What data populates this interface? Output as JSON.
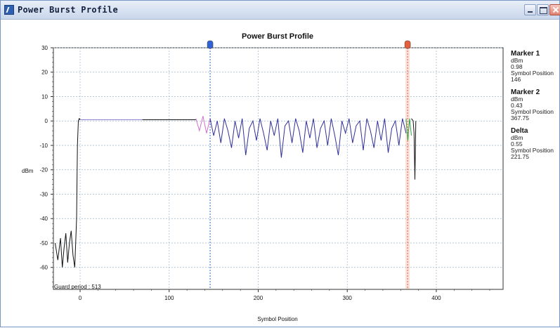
{
  "window": {
    "title": "Power Burst Profile"
  },
  "chart_data": {
    "type": "line",
    "title": "Power Burst Profile",
    "xlabel": "Symbol Position",
    "ylabel": "dBm",
    "xlim": [
      -30,
      475
    ],
    "ylim": [
      -69,
      30
    ],
    "x_ticks": [
      "0",
      "100",
      "200",
      "300",
      "400"
    ],
    "x_tick_values": [
      0,
      100,
      200,
      300,
      400
    ],
    "y_ticks": [
      "30",
      "20",
      "10",
      "0",
      "-10",
      "-20",
      "-30",
      "-40",
      "-50",
      "-60"
    ],
    "y_tick_values": [
      30,
      20,
      10,
      0,
      -10,
      -20,
      -30,
      -40,
      -50,
      -60
    ],
    "grid": true,
    "annotation": "Guard period : 513",
    "markers": [
      {
        "label": "1",
        "x": 146,
        "color": "#2f63d6"
      },
      {
        "label": "2",
        "x": 367.75,
        "color": "#e4603a"
      }
    ],
    "series": [
      {
        "color": "#111111",
        "segment": "ramp",
        "x": [
          -28,
          -25,
          -22,
          -20,
          -18,
          -16,
          -14,
          -12,
          -10,
          -8,
          -6,
          -4,
          -3,
          -2,
          -1,
          0,
          70
        ],
        "y": [
          -50,
          -57,
          -48,
          -60,
          -52,
          -46,
          -58,
          -50,
          -45,
          -55,
          -60,
          -40,
          -10,
          0,
          1,
          0.5,
          0.5
        ]
      },
      {
        "color": "#8a7fd0",
        "segment": "guard",
        "x": [
          0,
          70
        ],
        "y": [
          0.5,
          0.5
        ]
      },
      {
        "color": "#111111",
        "segment": "preamble-gap",
        "x": [
          70,
          130
        ],
        "y": [
          0.5,
          0.5
        ]
      },
      {
        "color": "#cf6fcf",
        "segment": "preamble",
        "x": [
          130,
          134,
          138,
          142,
          146
        ],
        "y": [
          1,
          -4,
          2,
          -5,
          1
        ]
      },
      {
        "color": "#30309a",
        "segment": "data",
        "x": [
          146,
          150,
          154,
          158,
          162,
          166,
          170,
          174,
          178,
          182,
          186,
          190,
          194,
          198,
          202,
          206,
          210,
          214,
          218,
          222,
          226,
          230,
          234,
          238,
          242,
          246,
          250,
          254,
          258,
          262,
          266,
          270,
          274,
          278,
          282,
          286,
          290,
          294,
          298,
          302,
          306,
          310,
          314,
          318,
          322,
          326,
          330,
          334,
          338,
          342,
          346,
          350,
          354,
          358,
          362,
          366
        ],
        "y": [
          1,
          -6,
          0,
          -9,
          1,
          -4,
          -11,
          0,
          -7,
          1,
          -14,
          -3,
          0,
          -8,
          1,
          -5,
          -12,
          0,
          -6,
          1,
          -15,
          -2,
          0,
          -9,
          1,
          -4,
          -13,
          0,
          -7,
          1,
          -11,
          -3,
          0,
          -10,
          1,
          -6,
          -14,
          0,
          -5,
          1,
          -9,
          -2,
          0,
          -12,
          1,
          -4,
          -11,
          0,
          -8,
          1,
          -13,
          -3,
          0,
          -10,
          1,
          -5
        ]
      },
      {
        "color": "#2fa24a",
        "segment": "tail",
        "x": [
          366,
          368,
          370,
          372
        ],
        "y": [
          1,
          -8,
          1,
          -6
        ]
      },
      {
        "color": "#111111",
        "segment": "ramp-down",
        "x": [
          372,
          374,
          375,
          376,
          377
        ],
        "y": [
          1,
          0,
          -5,
          -24,
          0
        ]
      }
    ]
  },
  "side_panel": {
    "marker1": {
      "title": "Marker 1",
      "unit": "dBm",
      "value": "0.98",
      "pos_label": "Symbol Position",
      "pos": "146"
    },
    "marker2": {
      "title": "Marker 2",
      "unit": "dBm",
      "value": "0.43",
      "pos_label": "Symbol Position",
      "pos": "367.75"
    },
    "delta": {
      "title": "Delta",
      "unit": "dBm",
      "value": "0.55",
      "pos_label": "Symbol Position",
      "pos": "221.75"
    }
  }
}
